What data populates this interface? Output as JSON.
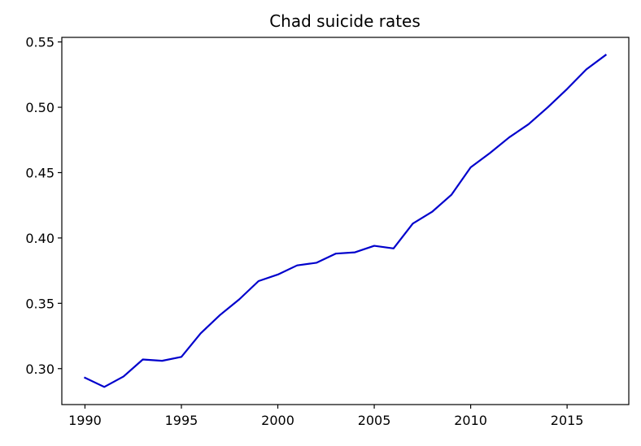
{
  "chart_data": {
    "type": "line",
    "title": "Chad suicide rates",
    "xlabel": "",
    "ylabel": "",
    "xlim": [
      1988.8,
      2018.2
    ],
    "ylim": [
      0.2725,
      0.5535
    ],
    "x_ticks": [
      1990,
      1995,
      2000,
      2005,
      2010,
      2015
    ],
    "y_ticks": [
      0.3,
      0.35,
      0.4,
      0.45,
      0.5,
      0.55
    ],
    "y_tick_labels": [
      "0.30",
      "0.35",
      "0.40",
      "0.45",
      "0.50",
      "0.55"
    ],
    "grid": false,
    "legend": "none",
    "series": [
      {
        "color": "#0000cc",
        "x": [
          1990,
          1991,
          1992,
          1993,
          1994,
          1995,
          1996,
          1997,
          1998,
          1999,
          2000,
          2001,
          2002,
          2003,
          2004,
          2005,
          2006,
          2007,
          2008,
          2009,
          2010,
          2011,
          2012,
          2013,
          2014,
          2015,
          2016,
          2017
        ],
        "values": [
          0.293,
          0.286,
          0.294,
          0.307,
          0.306,
          0.309,
          0.327,
          0.341,
          0.353,
          0.367,
          0.372,
          0.379,
          0.381,
          0.388,
          0.389,
          0.394,
          0.392,
          0.411,
          0.42,
          0.433,
          0.454,
          0.465,
          0.477,
          0.487,
          0.5,
          0.514,
          0.529,
          0.54
        ]
      }
    ]
  }
}
